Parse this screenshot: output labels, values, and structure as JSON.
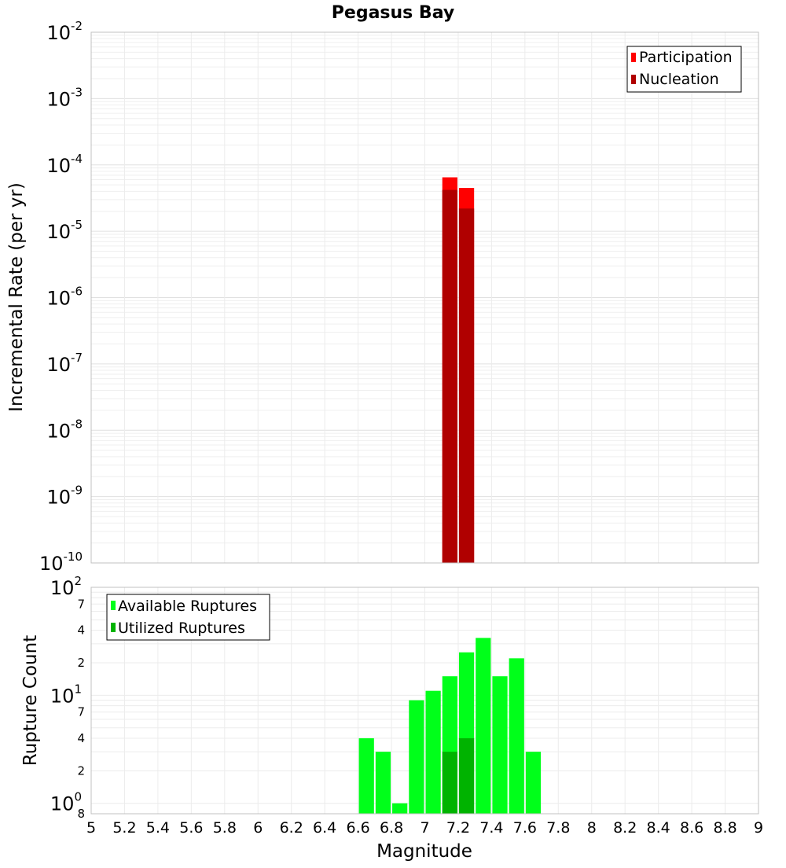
{
  "chart_data": [
    {
      "type": "bar",
      "title": "Pegasus Bay",
      "xlabel": "",
      "ylabel": "Incremental Rate (per yr)",
      "yscale": "log",
      "ylim": [
        1e-10,
        0.01
      ],
      "xlim": [
        5,
        9
      ],
      "y_ticks": [
        {
          "base": "10",
          "exp": "-10"
        },
        {
          "base": "10",
          "exp": "-9"
        },
        {
          "base": "10",
          "exp": "-8"
        },
        {
          "base": "10",
          "exp": "-7"
        },
        {
          "base": "10",
          "exp": "-6"
        },
        {
          "base": "10",
          "exp": "-5"
        },
        {
          "base": "10",
          "exp": "-4"
        },
        {
          "base": "10",
          "exp": "-3"
        },
        {
          "base": "10",
          "exp": "-2"
        }
      ],
      "grid": true,
      "legend_position": "top-right",
      "bar_width": 0.1,
      "series": [
        {
          "name": "Participation",
          "color": "#ff0000",
          "x": [
            7.15,
            7.25
          ],
          "values": [
            6.5e-05,
            4.5e-05
          ]
        },
        {
          "name": "Nucleation",
          "color": "#b00000",
          "x": [
            7.15,
            7.25
          ],
          "values": [
            4.2e-05,
            2.2e-05
          ]
        }
      ]
    },
    {
      "type": "bar",
      "xlabel": "Magnitude",
      "ylabel": "Rupture Count",
      "yscale": "log",
      "ylim": [
        0.8,
        100
      ],
      "xlim": [
        5,
        9
      ],
      "x_ticks": [
        "5",
        "5.2",
        "5.4",
        "5.6",
        "5.8",
        "6",
        "6.2",
        "6.4",
        "6.6",
        "6.8",
        "7",
        "7.2",
        "7.4",
        "7.6",
        "7.8",
        "8",
        "8.2",
        "8.4",
        "8.6",
        "8.8",
        "9"
      ],
      "y_major_ticks": [
        {
          "base": "10",
          "exp": "0"
        },
        {
          "base": "10",
          "exp": "1"
        },
        {
          "base": "10",
          "exp": "2"
        }
      ],
      "y_minor_ticks": [
        {
          "value": 0.8,
          "label": "8"
        },
        {
          "value": 2,
          "label": "2"
        },
        {
          "value": 4,
          "label": "4"
        },
        {
          "value": 7,
          "label": "7"
        },
        {
          "value": 20,
          "label": "2"
        },
        {
          "value": 40,
          "label": "4"
        },
        {
          "value": 70,
          "label": "7"
        }
      ],
      "grid": true,
      "legend_position": "top-left",
      "bar_width": 0.1,
      "series": [
        {
          "name": "Available Ruptures",
          "color": "#00ff1a",
          "x": [
            6.65,
            6.75,
            6.85,
            7.05,
            7.15,
            7.25,
            7.35,
            7.45,
            7.55,
            7.65,
            6.95
          ],
          "values": [
            4,
            3,
            1,
            11,
            15,
            25,
            34,
            15,
            22,
            3,
            9
          ]
        },
        {
          "name": "Utilized Ruptures",
          "color": "#00b300",
          "x": [
            7.15,
            7.25
          ],
          "values": [
            3,
            4
          ]
        }
      ]
    }
  ]
}
